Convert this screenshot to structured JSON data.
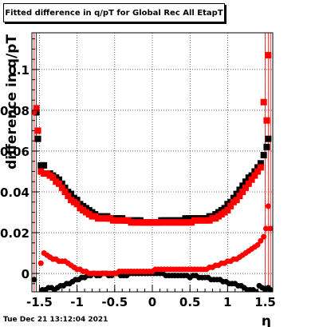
{
  "title": "Fitted difference in q/pT for Global Rec All EtapT",
  "timestamp": "Tue Dec 21 13:12:04 2021",
  "chart_data": {
    "type": "scatter",
    "title": "Fitted difference in q/pT for Global Rec All EtapT",
    "xlabel": "η",
    "ylabel": "difference in q/pT",
    "xlim": [
      -1.6,
      1.6
    ],
    "ylim": [
      -0.009,
      0.118
    ],
    "grid": true,
    "x_ticks": [
      -1.5,
      -1,
      -0.5,
      0,
      0.5,
      1,
      1.5
    ],
    "x_tick_labels": [
      "-1.5",
      "-1",
      "-0.5",
      "0",
      "0.5",
      "1",
      "1.5"
    ],
    "y_ticks": [
      0,
      0.02,
      0.04,
      0.06,
      0.08,
      0.1
    ],
    "y_tick_labels": [
      "0",
      "0.02",
      "0.04",
      "0.06",
      "0.08",
      "0.1"
    ],
    "series": [
      {
        "role": "width",
        "color": "#000000",
        "marker": "square",
        "x": [
          -1.54,
          -1.52,
          -1.48,
          -1.44,
          -1.4,
          -1.36,
          -1.32,
          -1.28,
          -1.24,
          -1.2,
          -1.16,
          -1.12,
          -1.08,
          -1.04,
          -1.0,
          -0.96,
          -0.92,
          -0.88,
          -0.84,
          -0.8,
          -0.76,
          -0.72,
          -0.68,
          -0.64,
          -0.6,
          -0.56,
          -0.52,
          -0.48,
          -0.44,
          -0.4,
          -0.36,
          -0.32,
          -0.28,
          -0.24,
          -0.2,
          -0.16,
          -0.12,
          -0.08,
          -0.04,
          0.0,
          0.04,
          0.08,
          0.12,
          0.16,
          0.2,
          0.24,
          0.28,
          0.32,
          0.36,
          0.4,
          0.44,
          0.48,
          0.52,
          0.56,
          0.6,
          0.64,
          0.68,
          0.72,
          0.76,
          0.8,
          0.84,
          0.88,
          0.92,
          0.96,
          1.0,
          1.04,
          1.08,
          1.12,
          1.16,
          1.2,
          1.24,
          1.28,
          1.32,
          1.36,
          1.4,
          1.44,
          1.48,
          1.52,
          1.54
        ],
        "y": [
          0.079,
          0.066,
          0.053,
          0.053,
          0.049,
          0.049,
          0.048,
          0.047,
          0.046,
          0.044,
          0.042,
          0.04,
          0.039,
          0.037,
          0.036,
          0.034,
          0.033,
          0.032,
          0.031,
          0.03,
          0.029,
          0.028,
          0.028,
          0.028,
          0.028,
          0.027,
          0.027,
          0.027,
          0.027,
          0.027,
          0.026,
          0.026,
          0.026,
          0.026,
          0.026,
          0.026,
          0.025,
          0.025,
          0.025,
          0.025,
          0.025,
          0.025,
          0.026,
          0.026,
          0.026,
          0.026,
          0.026,
          0.026,
          0.026,
          0.026,
          0.027,
          0.027,
          0.027,
          0.027,
          0.027,
          0.027,
          0.027,
          0.027,
          0.028,
          0.028,
          0.029,
          0.03,
          0.031,
          0.032,
          0.034,
          0.035,
          0.037,
          0.039,
          0.041,
          0.043,
          0.045,
          0.047,
          0.048,
          0.05,
          0.052,
          0.054,
          0.058,
          0.062,
          0.066
        ]
      },
      {
        "role": "width",
        "color": "#ff0000",
        "marker": "square",
        "x": [
          -1.54,
          -1.52,
          -1.48,
          -1.44,
          -1.4,
          -1.36,
          -1.32,
          -1.28,
          -1.24,
          -1.2,
          -1.16,
          -1.12,
          -1.08,
          -1.04,
          -1.0,
          -0.96,
          -0.92,
          -0.88,
          -0.84,
          -0.8,
          -0.76,
          -0.72,
          -0.68,
          -0.64,
          -0.6,
          -0.56,
          -0.52,
          -0.48,
          -0.44,
          -0.4,
          -0.36,
          -0.32,
          -0.28,
          -0.24,
          -0.2,
          -0.16,
          -0.12,
          -0.08,
          -0.04,
          0.0,
          0.04,
          0.08,
          0.12,
          0.16,
          0.2,
          0.24,
          0.28,
          0.32,
          0.36,
          0.4,
          0.44,
          0.48,
          0.52,
          0.56,
          0.6,
          0.64,
          0.68,
          0.72,
          0.76,
          0.8,
          0.84,
          0.88,
          0.92,
          0.96,
          1.0,
          1.04,
          1.08,
          1.12,
          1.16,
          1.2,
          1.24,
          1.28,
          1.32,
          1.36,
          1.4,
          1.44,
          1.48,
          1.52,
          1.54
        ],
        "y": [
          0.081,
          0.07,
          0.05,
          0.049,
          0.049,
          0.048,
          0.047,
          0.045,
          0.044,
          0.042,
          0.04,
          0.038,
          0.036,
          0.035,
          0.034,
          0.032,
          0.031,
          0.03,
          0.029,
          0.028,
          0.028,
          0.027,
          0.027,
          0.027,
          0.027,
          0.027,
          0.026,
          0.026,
          0.026,
          0.026,
          0.026,
          0.026,
          0.025,
          0.025,
          0.025,
          0.025,
          0.025,
          0.025,
          0.025,
          0.025,
          0.025,
          0.025,
          0.025,
          0.025,
          0.025,
          0.025,
          0.025,
          0.025,
          0.025,
          0.025,
          0.025,
          0.025,
          0.025,
          0.026,
          0.026,
          0.026,
          0.026,
          0.026,
          0.026,
          0.027,
          0.027,
          0.028,
          0.029,
          0.03,
          0.031,
          0.033,
          0.035,
          0.036,
          0.038,
          0.04,
          0.042,
          0.044,
          0.046,
          0.048,
          0.05,
          0.052,
          0.084,
          0.075,
          0.107
        ]
      },
      {
        "role": "mean",
        "color": "#000000",
        "marker": "circle",
        "x": [
          -1.57,
          -1.46,
          -1.42,
          -1.38,
          -1.34,
          -1.3,
          -1.26,
          -1.22,
          -1.18,
          -1.14,
          -1.1,
          -1.06,
          -1.02,
          -0.98,
          -0.94,
          -0.9,
          -0.86,
          -0.82,
          -0.78,
          -0.74,
          -0.7,
          -0.66,
          -0.62,
          -0.58,
          -0.54,
          -0.5,
          -0.46,
          -0.42,
          -0.38,
          -0.34,
          -0.3,
          -0.26,
          -0.22,
          -0.18,
          -0.14,
          -0.1,
          -0.06,
          -0.02,
          0.02,
          0.06,
          0.1,
          0.14,
          0.18,
          0.22,
          0.26,
          0.3,
          0.34,
          0.38,
          0.42,
          0.46,
          0.5,
          0.54,
          0.58,
          0.62,
          0.66,
          0.7,
          0.74,
          0.78,
          0.82,
          0.86,
          0.9,
          0.94,
          0.98,
          1.02,
          1.06,
          1.1,
          1.14,
          1.18,
          1.22,
          1.26,
          1.3,
          1.34,
          1.38,
          1.42,
          1.46,
          1.5,
          1.54,
          1.57
        ],
        "y": [
          -0.003,
          -0.008,
          -0.008,
          -0.007,
          -0.007,
          -0.008,
          -0.007,
          -0.006,
          -0.006,
          -0.005,
          -0.005,
          -0.004,
          -0.003,
          -0.003,
          -0.002,
          -0.002,
          -0.001,
          -0.001,
          0.0,
          -0.001,
          -0.001,
          0.0,
          0.0,
          -0.001,
          -0.001,
          0.0,
          0.0,
          -0.001,
          -0.001,
          -0.001,
          0.0,
          0.0,
          0.0,
          0.0,
          0.0,
          0.0,
          0.0,
          0.0,
          0.0,
          0.0,
          0.0,
          0.0,
          -0.001,
          -0.001,
          -0.001,
          -0.001,
          -0.001,
          -0.001,
          -0.001,
          -0.001,
          -0.002,
          -0.001,
          -0.001,
          -0.002,
          -0.002,
          -0.002,
          -0.002,
          -0.003,
          -0.003,
          -0.003,
          -0.003,
          -0.004,
          -0.004,
          -0.005,
          -0.005,
          -0.005,
          -0.006,
          -0.006,
          -0.007,
          -0.008,
          -0.008,
          -0.008,
          -0.009,
          -0.006,
          -0.007,
          -0.008,
          -0.007,
          -0.008
        ]
      },
      {
        "role": "mean",
        "color": "#ff0000",
        "marker": "circle",
        "x": [
          -1.57,
          -1.48,
          -1.44,
          -1.4,
          -1.36,
          -1.32,
          -1.28,
          -1.24,
          -1.2,
          -1.16,
          -1.12,
          -1.08,
          -1.04,
          -1.0,
          -0.96,
          -0.92,
          -0.88,
          -0.84,
          -0.8,
          -0.76,
          -0.72,
          -0.68,
          -0.64,
          -0.6,
          -0.56,
          -0.52,
          -0.48,
          -0.44,
          -0.4,
          -0.36,
          -0.32,
          -0.28,
          -0.24,
          -0.2,
          -0.16,
          -0.12,
          -0.08,
          -0.04,
          0.0,
          0.04,
          0.08,
          0.12,
          0.16,
          0.2,
          0.24,
          0.28,
          0.32,
          0.36,
          0.4,
          0.44,
          0.48,
          0.52,
          0.56,
          0.6,
          0.64,
          0.68,
          0.72,
          0.76,
          0.8,
          0.84,
          0.88,
          0.92,
          0.96,
          1.0,
          1.04,
          1.08,
          1.12,
          1.16,
          1.2,
          1.24,
          1.28,
          1.32,
          1.36,
          1.4,
          1.44,
          1.48,
          1.51,
          1.54,
          1.57
        ],
        "y": [
          0.079,
          0.005,
          0.01,
          0.009,
          0.008,
          0.007,
          0.007,
          0.006,
          0.006,
          0.006,
          0.005,
          0.004,
          0.003,
          0.002,
          0.002,
          0.001,
          0.001,
          0.0,
          0.0,
          0.0,
          0.0,
          0.0,
          0.0,
          0.0,
          0.0,
          0.0,
          0.0,
          0.001,
          0.001,
          0.001,
          0.001,
          0.001,
          0.001,
          0.001,
          0.001,
          0.001,
          0.001,
          0.001,
          0.001,
          0.002,
          0.002,
          0.002,
          0.002,
          0.002,
          0.002,
          0.002,
          0.002,
          0.002,
          0.002,
          0.002,
          0.002,
          0.002,
          0.002,
          0.002,
          0.002,
          0.002,
          0.002,
          0.003,
          0.003,
          0.004,
          0.004,
          0.005,
          0.005,
          0.006,
          0.006,
          0.007,
          0.007,
          0.008,
          0.009,
          0.01,
          0.011,
          0.012,
          0.013,
          0.014,
          0.016,
          0.018,
          0.022,
          0.033,
          0.022
        ]
      }
    ]
  }
}
